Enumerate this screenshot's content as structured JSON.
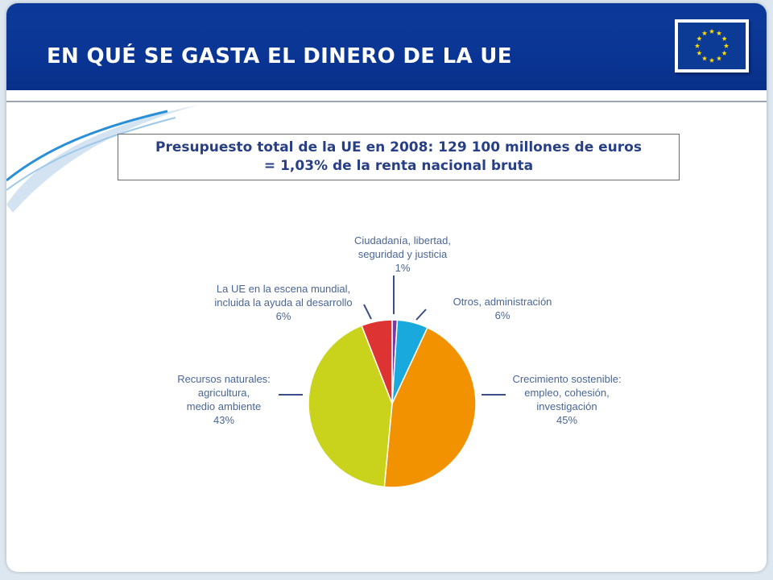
{
  "header": {
    "title": "EN QUÉ SE GASTA EL DINERO DE LA UE"
  },
  "budget": {
    "line1": "Presupuesto total de la UE en 2008: 129 100 millones de euros",
    "line2": "= 1,03% de la renta nacional bruta"
  },
  "colors": {
    "header": "#0a3594",
    "title_text": "#ffffff",
    "budget_text": "#273f86",
    "label_text": "#4a6696",
    "flag_blue": "#0c3b96",
    "flag_star": "#ffdd00"
  },
  "icons": {
    "flag": "eu-flag-icon"
  },
  "chart_data": {
    "type": "pie",
    "slices": [
      {
        "label": "Ciudadanía, libertad, seguridad y justicia",
        "value": 1,
        "color": "#7b3ba0"
      },
      {
        "label": "Otros, administración",
        "value": 6,
        "color": "#19a9dc"
      },
      {
        "label": "Crecimiento sostenible: empleo, cohesión, investigación",
        "value": 45,
        "color": "#f39200"
      },
      {
        "label": "Recursos naturales: agricultura, medio ambiente",
        "value": 43,
        "color": "#c9d31c"
      },
      {
        "label": "La UE en la escena mundial, incluida la ayuda al desarrollo",
        "value": 6,
        "color": "#dd3333"
      }
    ],
    "label_lines": [
      [
        "Ciudadanía, libertad,",
        "seguridad y justicia",
        "1%"
      ],
      [
        "Otros, administración",
        "6%"
      ],
      [
        "Crecimiento sostenible:",
        "empleo, cohesión,",
        "investigación",
        "45%"
      ],
      [
        "Recursos naturales:",
        "agricultura,",
        "medio ambiente",
        "43%"
      ],
      [
        "La UE en la escena mundial,",
        "incluida la ayuda al desarrollo",
        "6%"
      ]
    ],
    "legend": "none"
  }
}
